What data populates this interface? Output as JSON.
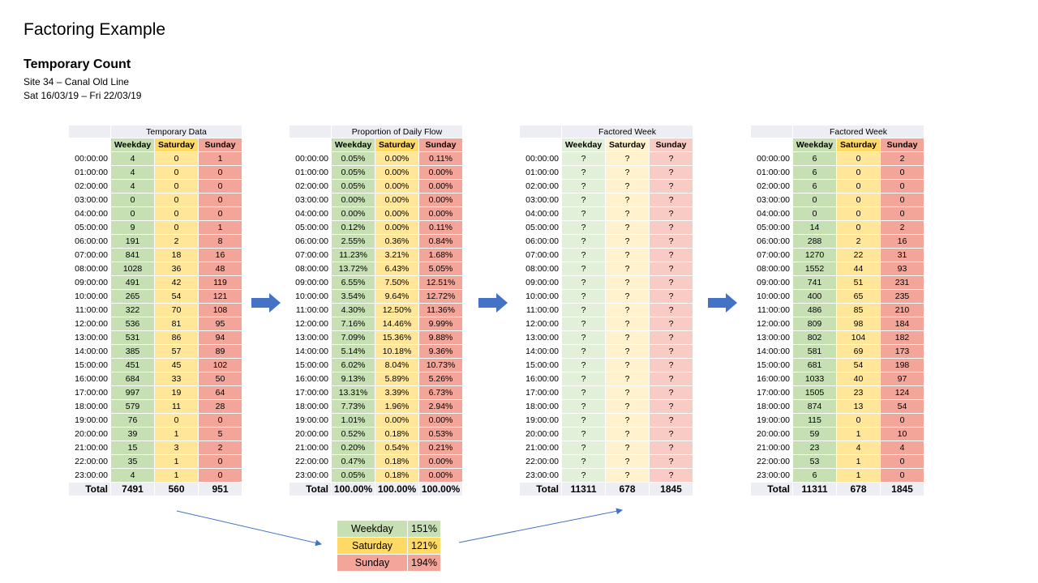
{
  "title": "Factoring Example",
  "subtitle": "Temporary Count",
  "site": "Site 34 – Canal Old Line",
  "dates": "Sat 16/03/19 – Fri 22/03/19",
  "headers": [
    "Weekday",
    "Saturday",
    "Sunday"
  ],
  "total_label": "Total",
  "times": [
    "00:00:00",
    "01:00:00",
    "02:00:00",
    "03:00:00",
    "04:00:00",
    "05:00:00",
    "06:00:00",
    "07:00:00",
    "08:00:00",
    "09:00:00",
    "10:00:00",
    "11:00:00",
    "12:00:00",
    "13:00:00",
    "14:00:00",
    "15:00:00",
    "16:00:00",
    "17:00:00",
    "18:00:00",
    "19:00:00",
    "20:00:00",
    "21:00:00",
    "22:00:00",
    "23:00:00"
  ],
  "tables": [
    {
      "title": "Temporary Data",
      "rows": [
        [
          "4",
          "0",
          "1"
        ],
        [
          "4",
          "0",
          "0"
        ],
        [
          "4",
          "0",
          "0"
        ],
        [
          "0",
          "0",
          "0"
        ],
        [
          "0",
          "0",
          "0"
        ],
        [
          "9",
          "0",
          "1"
        ],
        [
          "191",
          "2",
          "8"
        ],
        [
          "841",
          "18",
          "16"
        ],
        [
          "1028",
          "36",
          "48"
        ],
        [
          "491",
          "42",
          "119"
        ],
        [
          "265",
          "54",
          "121"
        ],
        [
          "322",
          "70",
          "108"
        ],
        [
          "536",
          "81",
          "95"
        ],
        [
          "531",
          "86",
          "94"
        ],
        [
          "385",
          "57",
          "89"
        ],
        [
          "451",
          "45",
          "102"
        ],
        [
          "684",
          "33",
          "50"
        ],
        [
          "997",
          "19",
          "64"
        ],
        [
          "579",
          "11",
          "28"
        ],
        [
          "76",
          "0",
          "0"
        ],
        [
          "39",
          "1",
          "5"
        ],
        [
          "15",
          "3",
          "2"
        ],
        [
          "35",
          "1",
          "0"
        ],
        [
          "4",
          "1",
          "0"
        ]
      ],
      "totals": [
        "7491",
        "560",
        "951"
      ]
    },
    {
      "title": "Proportion of Daily Flow",
      "rows": [
        [
          "0.05%",
          "0.00%",
          "0.11%"
        ],
        [
          "0.05%",
          "0.00%",
          "0.00%"
        ],
        [
          "0.05%",
          "0.00%",
          "0.00%"
        ],
        [
          "0.00%",
          "0.00%",
          "0.00%"
        ],
        [
          "0.00%",
          "0.00%",
          "0.00%"
        ],
        [
          "0.12%",
          "0.00%",
          "0.11%"
        ],
        [
          "2.55%",
          "0.36%",
          "0.84%"
        ],
        [
          "11.23%",
          "3.21%",
          "1.68%"
        ],
        [
          "13.72%",
          "6.43%",
          "5.05%"
        ],
        [
          "6.55%",
          "7.50%",
          "12.51%"
        ],
        [
          "3.54%",
          "9.64%",
          "12.72%"
        ],
        [
          "4.30%",
          "12.50%",
          "11.36%"
        ],
        [
          "7.16%",
          "14.46%",
          "9.99%"
        ],
        [
          "7.09%",
          "15.36%",
          "9.88%"
        ],
        [
          "5.14%",
          "10.18%",
          "9.36%"
        ],
        [
          "6.02%",
          "8.04%",
          "10.73%"
        ],
        [
          "9.13%",
          "5.89%",
          "5.26%"
        ],
        [
          "13.31%",
          "3.39%",
          "6.73%"
        ],
        [
          "7.73%",
          "1.96%",
          "2.94%"
        ],
        [
          "1.01%",
          "0.00%",
          "0.00%"
        ],
        [
          "0.52%",
          "0.18%",
          "0.53%"
        ],
        [
          "0.20%",
          "0.54%",
          "0.21%"
        ],
        [
          "0.47%",
          "0.18%",
          "0.00%"
        ],
        [
          "0.05%",
          "0.18%",
          "0.00%"
        ]
      ],
      "totals": [
        "100.00%",
        "100.00%",
        "100.00%"
      ]
    },
    {
      "title": "Factored Week",
      "rows": [
        [
          "?",
          "?",
          "?"
        ],
        [
          "?",
          "?",
          "?"
        ],
        [
          "?",
          "?",
          "?"
        ],
        [
          "?",
          "?",
          "?"
        ],
        [
          "?",
          "?",
          "?"
        ],
        [
          "?",
          "?",
          "?"
        ],
        [
          "?",
          "?",
          "?"
        ],
        [
          "?",
          "?",
          "?"
        ],
        [
          "?",
          "?",
          "?"
        ],
        [
          "?",
          "?",
          "?"
        ],
        [
          "?",
          "?",
          "?"
        ],
        [
          "?",
          "?",
          "?"
        ],
        [
          "?",
          "?",
          "?"
        ],
        [
          "?",
          "?",
          "?"
        ],
        [
          "?",
          "?",
          "?"
        ],
        [
          "?",
          "?",
          "?"
        ],
        [
          "?",
          "?",
          "?"
        ],
        [
          "?",
          "?",
          "?"
        ],
        [
          "?",
          "?",
          "?"
        ],
        [
          "?",
          "?",
          "?"
        ],
        [
          "?",
          "?",
          "?"
        ],
        [
          "?",
          "?",
          "?"
        ],
        [
          "?",
          "?",
          "?"
        ],
        [
          "?",
          "?",
          "?"
        ]
      ],
      "totals": [
        "11311",
        "678",
        "1845"
      ]
    },
    {
      "title": "Factored Week",
      "rows": [
        [
          "6",
          "0",
          "2"
        ],
        [
          "6",
          "0",
          "0"
        ],
        [
          "6",
          "0",
          "0"
        ],
        [
          "0",
          "0",
          "0"
        ],
        [
          "0",
          "0",
          "0"
        ],
        [
          "14",
          "0",
          "2"
        ],
        [
          "288",
          "2",
          "16"
        ],
        [
          "1270",
          "22",
          "31"
        ],
        [
          "1552",
          "44",
          "93"
        ],
        [
          "741",
          "51",
          "231"
        ],
        [
          "400",
          "65",
          "235"
        ],
        [
          "486",
          "85",
          "210"
        ],
        [
          "809",
          "98",
          "184"
        ],
        [
          "802",
          "104",
          "182"
        ],
        [
          "581",
          "69",
          "173"
        ],
        [
          "681",
          "54",
          "198"
        ],
        [
          "1033",
          "40",
          "97"
        ],
        [
          "1505",
          "23",
          "124"
        ],
        [
          "874",
          "13",
          "54"
        ],
        [
          "115",
          "0",
          "0"
        ],
        [
          "59",
          "1",
          "10"
        ],
        [
          "23",
          "4",
          "4"
        ],
        [
          "53",
          "1",
          "0"
        ],
        [
          "6",
          "1",
          "0"
        ]
      ],
      "totals": [
        "11311",
        "678",
        "1845"
      ]
    }
  ],
  "factors": [
    {
      "label": "Weekday",
      "value": "151%"
    },
    {
      "label": "Saturday",
      "value": "121%"
    },
    {
      "label": "Sunday",
      "value": "194%"
    }
  ],
  "colors": {
    "weekday": "#c6e0b4",
    "saturday": "#ffd966",
    "sunday": "#f4a59a",
    "arrow": "#4472c4"
  }
}
